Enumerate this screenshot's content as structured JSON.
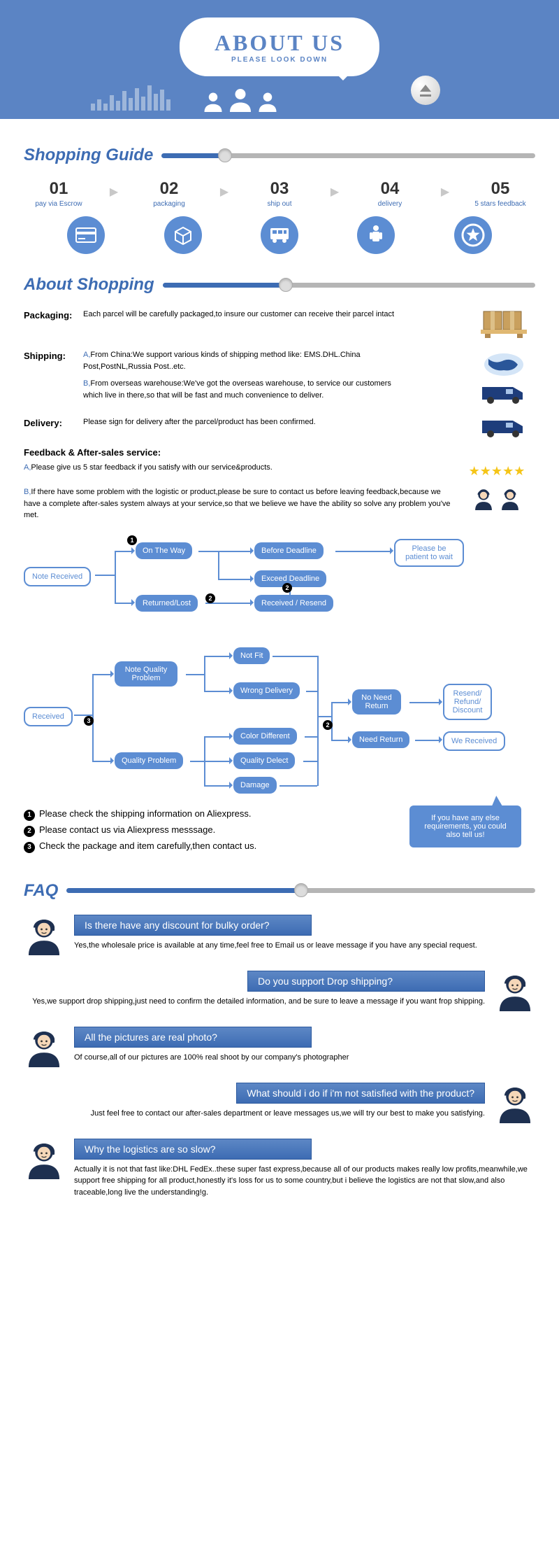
{
  "colors": {
    "primary": "#5b84c4",
    "accent": "#3d6cb3",
    "node": "#5c8dd3",
    "star": "#f5c518"
  },
  "banner": {
    "title": "ABOUT US",
    "subtitle": "PLEASE LOOK DOWN"
  },
  "sections": {
    "guide": {
      "title": "Shopping Guide",
      "fill_pct": 17
    },
    "about": {
      "title": "About Shopping",
      "fill_pct": 33
    },
    "faq": {
      "title": "FAQ",
      "fill_pct": 50
    }
  },
  "steps": [
    {
      "num": "01",
      "label": "pay via Escrow"
    },
    {
      "num": "02",
      "label": "packaging"
    },
    {
      "num": "03",
      "label": "ship out"
    },
    {
      "num": "04",
      "label": "delivery"
    },
    {
      "num": "05",
      "label": "5 stars feedback"
    }
  ],
  "about": {
    "packaging": {
      "label": "Packaging:",
      "text": "Each parcel will be carefully packaged,to insure our customer can receive their parcel intact"
    },
    "shipping": {
      "label": "Shipping:",
      "a_pre": "A,",
      "a": "From China:We support various kinds of shipping method like: EMS.DHL.China Post,PostNL,Russia Post..etc.",
      "b_pre": "B,",
      "b": "From overseas warehouse:We've got the overseas warehouse, to service our customers which live in there,so that will be fast and much convenience to deliver."
    },
    "delivery": {
      "label": "Delivery:",
      "text": "Please sign for delivery after the parcel/product has been confirmed."
    },
    "feedback_title": "Feedback & After-sales service:",
    "feedback_a_pre": "A,",
    "feedback_a": "Please give us 5 star feedback if you satisfy with our service&products.",
    "feedback_b_pre": "B,",
    "feedback_b": "If there have some problem with the logistic or product,please be sure to contact us before leaving feedback,because we have a complete after-sales system always at your service,so that we believe we have the ability so solve any problem you've met."
  },
  "flow1": {
    "note_received": "Note Received",
    "on_the_way": "On The Way",
    "returned_lost": "Returned/Lost",
    "before_deadline": "Before Deadline",
    "exceed_deadline": "Exceed Deadline",
    "received_resend": "Received / Resend",
    "please_wait": "Please be patient to wait"
  },
  "flow2": {
    "received": "Received",
    "note_quality": "Note Quality Problem",
    "quality_problem": "Quality Problem",
    "not_fit": "Not Fit",
    "wrong_delivery": "Wrong Delivery",
    "color_diff": "Color Different",
    "quality_delect": "Quality Delect",
    "damage": "Damage",
    "no_need": "No Need Return",
    "need": "Need Return",
    "resend": "Resend/ Refund/ Discount",
    "we_received": "We Received"
  },
  "tips": {
    "t1": "Please check the shipping information on Aliexpress.",
    "t2": "Please contact us via Aliexpress messsage.",
    "t3": "Check the package and item carefully,then contact us.",
    "speech": "If you have any else requirements, you could also tell us!"
  },
  "faq": [
    {
      "q": "Is there have any discount for bulky order?",
      "a": "Yes,the wholesale price is available at any time,feel free to Email us or leave message if you have any special request.",
      "side": "left"
    },
    {
      "q": "Do you support Drop shipping?",
      "a": "Yes,we support drop shipping,just need to confirm the detailed information, and be sure to leave a message if you want frop shipping.",
      "side": "right"
    },
    {
      "q": "All the pictures are real photo?",
      "a": "Of course,all of our pictures are 100% real shoot by our company's photographer",
      "side": "left"
    },
    {
      "q": "What should i do if i'm not satisfied with the product?",
      "a": "Just feel free to contact our after-sales department or leave messages us,we will try our best to make you satisfying.",
      "side": "right"
    },
    {
      "q": "Why the logistics are so slow?",
      "a": "Actually it is not that fast like:DHL FedEx..these super fast express,because all of our products makes really low profits,meanwhile,we support free shipping for all product,honestly it's loss for us to some country,but i believe the logistics are not that slow,and also traceable,long live the understanding!g.",
      "side": "left"
    }
  ]
}
